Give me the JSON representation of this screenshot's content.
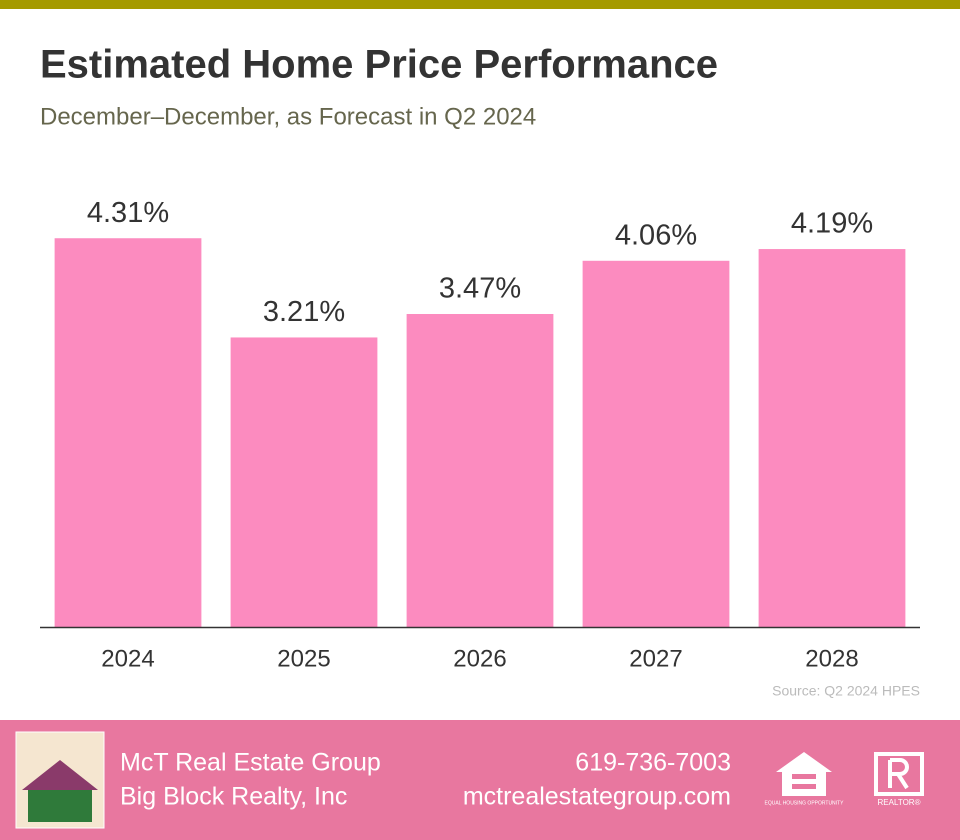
{
  "chart_data": {
    "type": "bar",
    "title": "Estimated Home Price Performance",
    "subtitle": "December–December, as Forecast in Q2 2024",
    "source": "Source: Q2 2024 HPES",
    "categories": [
      "2024",
      "2025",
      "2026",
      "2027",
      "2028"
    ],
    "values": [
      4.31,
      3.21,
      3.47,
      4.06,
      4.19
    ],
    "value_labels": [
      "4.31%",
      "3.21%",
      "3.47%",
      "4.06%",
      "4.19%"
    ],
    "color": "#fc8bbf",
    "ylim": [
      0,
      5
    ]
  },
  "footer": {
    "company": "McT Real Estate Group",
    "brokerage": "Big Block Realty, Inc",
    "phone": "619-736-7003",
    "website": "mctrealestategroup.com",
    "equal_housing": "EQUAL HOUSING OPPORTUNITY",
    "realtor": "REALTOR®"
  }
}
